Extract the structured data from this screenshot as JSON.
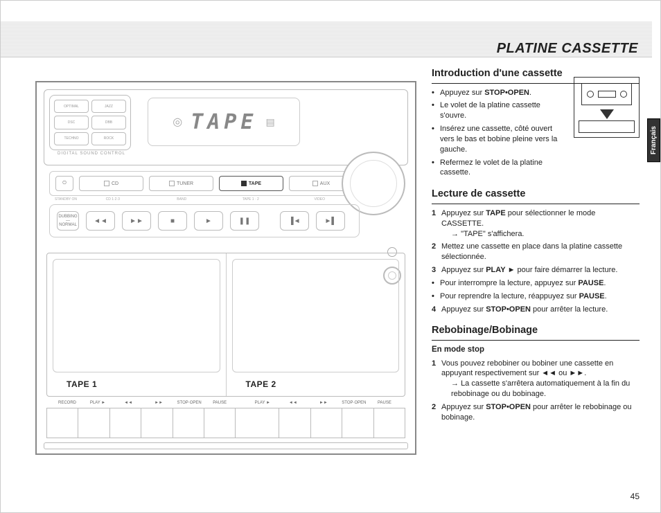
{
  "page": {
    "main_title": "PLATINE CASSETTE",
    "tab_label": "Français",
    "page_number": "45"
  },
  "device": {
    "dsc_label": "DIGITAL SOUND CONTROL",
    "dsc_buttons": [
      "OPTIMAL",
      "JAZZ",
      "DSC",
      "DBB",
      "TECHNO",
      "ROCK"
    ],
    "display_text": "TAPE",
    "source_buttons": {
      "power": "⏻",
      "cd": "CD",
      "tuner": "TUNER",
      "tape": "TAPE",
      "aux": "AUX"
    },
    "source_sub": {
      "standby": "STANDBY ON",
      "cd": "CD 1·2·3",
      "tuner": "BAND",
      "tape": "TAPE 1 · 2",
      "aux": "VIDEO"
    },
    "transport": {
      "rew": "◄◄",
      "ff": "►►",
      "stop": "■",
      "play": "►",
      "pause": "❚❚",
      "prev": "▐◄",
      "next": "►▌"
    },
    "deck1_label_a": "TAPE ",
    "deck1_label_b": "1",
    "deck2_label_a": "TAPE ",
    "deck2_label_b": "2",
    "btn_labels_left": [
      "RECORD",
      "PLAY ►",
      "◄◄",
      "►►",
      "STOP·OPEN",
      "PAUSE"
    ],
    "btn_labels_right": [
      "PLAY ►",
      "◄◄",
      "►►",
      "STOP·OPEN",
      "PAUSE"
    ]
  },
  "sections": {
    "intro": {
      "heading": "Introduction d'une cassette",
      "items": [
        "Appuyez sur <b>STOP•OPEN</b>.",
        "Le volet de la platine cassette s'ouvre.",
        "Insérez une cassette, côté ouvert vers le bas et bobine pleine vers la gauche.",
        "Refermez le volet de la platine cassette."
      ]
    },
    "lecture": {
      "heading": "Lecture de cassette",
      "step1": "Appuyez sur <b>TAPE</b> pour sélectionner le mode CASSETTE.",
      "step1_sub": "\"TAPE\" s'affichera.",
      "step2": "Mettez une cassette en place dans la platine cassette sélectionnée.",
      "step3": "Appuyez sur <b>PLAY</b> ► pour faire démarrer la lecture.",
      "bul1": "Pour interrompre la lecture, appuyez sur <b>PAUSE</b>.",
      "bul2": "Pour reprendre la lecture, réappuyez sur <b>PAUSE</b>.",
      "step4": "Appuyez sur <b>STOP•OPEN</b> pour arrêter la lecture."
    },
    "rebo": {
      "heading": "Rebobinage/Bobinage",
      "subheading": "En mode stop",
      "step1": "Vous pouvez rebobiner ou bobiner une cassette en appuyant respectivement sur ◄◄ ou ►►.",
      "step1_sub": "La cassette s'arrêtera automatiquement à la fin du rebobinage ou du bobinage.",
      "step2": "Appuyez sur <b>STOP•OPEN</b> pour arrêter le rebobinage ou bobinage."
    }
  }
}
